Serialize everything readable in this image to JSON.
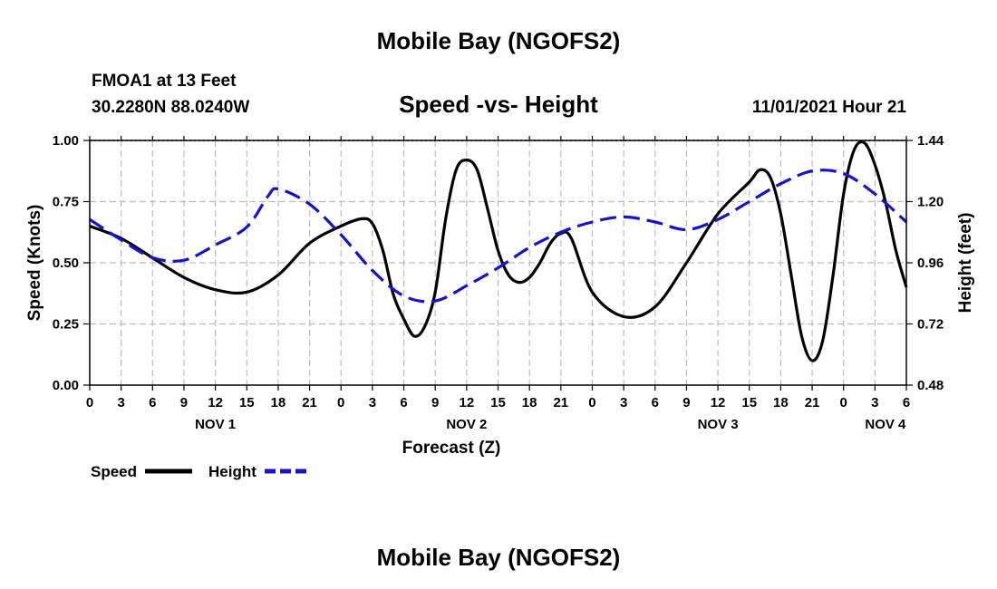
{
  "page_title": "Mobile Bay (NGOFS2)",
  "footer_title": "Mobile Bay (NGOFS2)",
  "station": {
    "name_depth": "FMOA1 at 13 Feet",
    "coords": "30.2280N  88.0240W"
  },
  "run_time": "11/01/2021 Hour 21",
  "colors": {
    "speed": "#000000",
    "height": "#1414c8",
    "grid": "#bdbdbd"
  },
  "chart_data": {
    "type": "line",
    "title": "Speed -vs- Height",
    "xlabel": "Forecast (Z)",
    "ylabel": "Speed (Knots)",
    "y2label": "Height (feet)",
    "xlim": [
      0,
      78
    ],
    "ylim": [
      0,
      1.0
    ],
    "y2lim": [
      0.48,
      1.44
    ],
    "x_ticks": [
      0,
      3,
      6,
      9,
      12,
      15,
      18,
      21,
      24,
      27,
      30,
      33,
      36,
      39,
      42,
      45,
      48,
      51,
      54,
      57,
      60,
      63,
      66,
      69,
      72,
      75,
      78
    ],
    "x_tick_labels": [
      "0",
      "3",
      "6",
      "9",
      "12",
      "15",
      "18",
      "21",
      "0",
      "3",
      "6",
      "9",
      "12",
      "15",
      "18",
      "21",
      "0",
      "3",
      "6",
      "9",
      "12",
      "15",
      "18",
      "21",
      "0",
      "3",
      "6"
    ],
    "day_labels": [
      {
        "x": 12,
        "label": "NOV 1"
      },
      {
        "x": 36,
        "label": "NOV 2"
      },
      {
        "x": 60,
        "label": "NOV 3"
      },
      {
        "x": 76,
        "label": "NOV 4"
      }
    ],
    "y_ticks": [
      0,
      0.25,
      0.5,
      0.75,
      1.0
    ],
    "y_tick_labels": [
      "0.00",
      "0.25",
      "0.50",
      "0.75",
      "1.00"
    ],
    "y2_ticks": [
      0.48,
      0.72,
      0.96,
      1.2,
      1.44
    ],
    "y2_tick_labels": [
      "0.48",
      "0.72",
      "0.96",
      "1.20",
      "1.44"
    ],
    "legend": [
      {
        "name": "Speed",
        "style": "solid"
      },
      {
        "name": "Height",
        "style": "dashed"
      }
    ],
    "series": [
      {
        "name": "Speed",
        "axis": "left",
        "x": [
          0,
          3,
          6,
          9,
          12,
          15,
          18,
          21,
          24,
          26,
          27,
          28,
          29,
          30,
          31,
          32,
          33,
          34,
          35,
          36,
          37,
          38,
          39,
          40,
          41,
          42,
          43,
          44,
          45,
          46,
          48,
          51,
          54,
          57,
          60,
          63,
          64,
          65,
          66,
          67,
          68,
          69,
          70,
          71,
          72,
          73,
          74,
          75,
          76,
          77,
          78
        ],
        "values": [
          0.65,
          0.6,
          0.52,
          0.44,
          0.39,
          0.38,
          0.45,
          0.58,
          0.65,
          0.68,
          0.66,
          0.55,
          0.37,
          0.27,
          0.2,
          0.24,
          0.38,
          0.68,
          0.88,
          0.92,
          0.88,
          0.72,
          0.55,
          0.45,
          0.42,
          0.44,
          0.5,
          0.58,
          0.62,
          0.6,
          0.38,
          0.28,
          0.32,
          0.5,
          0.7,
          0.83,
          0.88,
          0.85,
          0.7,
          0.45,
          0.2,
          0.1,
          0.18,
          0.45,
          0.78,
          0.96,
          0.99,
          0.9,
          0.75,
          0.55,
          0.4
        ]
      },
      {
        "name": "Height",
        "axis": "right",
        "x": [
          0,
          3,
          6,
          9,
          12,
          15,
          17,
          18,
          21,
          24,
          27,
          30,
          33,
          36,
          39,
          42,
          45,
          48,
          51,
          54,
          57,
          60,
          63,
          66,
          69,
          72,
          75,
          78
        ],
        "values": [
          1.13,
          1.05,
          0.98,
          0.97,
          1.03,
          1.1,
          1.22,
          1.25,
          1.19,
          1.07,
          0.93,
          0.83,
          0.81,
          0.87,
          0.94,
          1.02,
          1.08,
          1.12,
          1.14,
          1.12,
          1.09,
          1.13,
          1.2,
          1.27,
          1.32,
          1.31,
          1.23,
          1.12
        ]
      }
    ]
  }
}
